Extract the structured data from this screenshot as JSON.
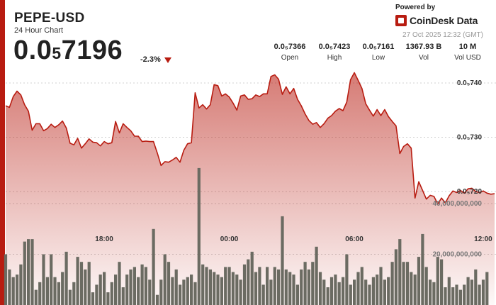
{
  "header": {
    "symbol": "PEPE-USD",
    "subtitle": "24 Hour Chart",
    "price_main": "0.0",
    "price_sub": "5",
    "price_tail": "7196",
    "change": "-2.3%"
  },
  "brand": {
    "powered_by": "Powered by",
    "name": "CoinDesk Data",
    "timestamp": "27 Oct 2025 12:32 (GMT)"
  },
  "stats": [
    {
      "value": "0.0₅7366",
      "label": "Open"
    },
    {
      "value": "0.0₅7423",
      "label": "High"
    },
    {
      "value": "0.0₅7161",
      "label": "Low"
    },
    {
      "value": "1367.93 B",
      "label": "Vol"
    },
    {
      "value": "10 M",
      "label": "Vol USD"
    }
  ],
  "colors": {
    "accent": "#b81c11",
    "price_line": "#b81c11",
    "volume_bar": "#6b6b62",
    "gridline": "#d0d0d0"
  },
  "chart_data": {
    "type": "line",
    "price_axis": {
      "ticks": [
        7.4e-06,
        7.3e-06,
        7.2e-06
      ],
      "tick_labels": [
        "0.0₅740",
        "0.0₅730",
        "0.0₅720"
      ]
    },
    "volume_axis": {
      "ticks": [
        40000000000,
        20000000000
      ],
      "tick_labels": [
        "40,000,000,000",
        "20,000,000,000"
      ]
    },
    "x_tick_labels": [
      "18:00",
      "00:00",
      "06:00",
      "12:00"
    ],
    "x_tick_index": [
      26,
      59,
      92,
      126
    ],
    "price": [
      7.358,
      7.355,
      7.375,
      7.385,
      7.378,
      7.36,
      7.348,
      7.313,
      7.325,
      7.325,
      7.312,
      7.316,
      7.324,
      7.318,
      7.323,
      7.33,
      7.317,
      7.289,
      7.286,
      7.298,
      7.28,
      7.288,
      7.297,
      7.291,
      7.29,
      7.284,
      7.292,
      7.288,
      7.29,
      7.329,
      7.308,
      7.325,
      7.318,
      7.312,
      7.302,
      7.302,
      7.292,
      7.293,
      7.292,
      7.292,
      7.271,
      7.248,
      7.255,
      7.254,
      7.258,
      7.263,
      7.254,
      7.276,
      7.288,
      7.29,
      7.382,
      7.354,
      7.36,
      7.352,
      7.36,
      7.397,
      7.395,
      7.376,
      7.38,
      7.374,
      7.363,
      7.35,
      7.376,
      7.378,
      7.37,
      7.371,
      7.378,
      7.375,
      7.38,
      7.38,
      7.412,
      7.415,
      7.407,
      7.379,
      7.393,
      7.38,
      7.39,
      7.37,
      7.358,
      7.343,
      7.331,
      7.324,
      7.327,
      7.318,
      7.325,
      7.335,
      7.34,
      7.348,
      7.353,
      7.349,
      7.365,
      7.406,
      7.419,
      7.405,
      7.39,
      7.362,
      7.35,
      7.339,
      7.351,
      7.34,
      7.351,
      7.338,
      7.329,
      7.321,
      7.27,
      7.283,
      7.288,
      7.28,
      7.188,
      7.218,
      7.202,
      7.186,
      7.193,
      7.191,
      7.177,
      7.188,
      7.179,
      7.192,
      7.201,
      7.198,
      7.202,
      7.197,
      7.205,
      7.206,
      7.2,
      7.198,
      7.201,
      7.197,
      7.195,
      7.196
    ],
    "price_scale": 1e-06,
    "volume": [
      20,
      14,
      11,
      12,
      16,
      25,
      26,
      26,
      6,
      9,
      20,
      11,
      20,
      11,
      9,
      13,
      21,
      6,
      9,
      19,
      17,
      14,
      17,
      5,
      8,
      12,
      13,
      5,
      9,
      12,
      17,
      7,
      12,
      14,
      15,
      11,
      16,
      15,
      10,
      30,
      4,
      10,
      20,
      17,
      11,
      14,
      8,
      10,
      11,
      12,
      9,
      54,
      16,
      15,
      14,
      13,
      12,
      11,
      15,
      15,
      13,
      12,
      10,
      16,
      18,
      21,
      13,
      15,
      8,
      15,
      10,
      15,
      14,
      35,
      14,
      13,
      12,
      8,
      14,
      17,
      14,
      17,
      23,
      13,
      10,
      7,
      11,
      12,
      9,
      11,
      20,
      8,
      10,
      13,
      15,
      10,
      8,
      11,
      12,
      15,
      10,
      11,
      17,
      22,
      26,
      17,
      17,
      13,
      12,
      19,
      28,
      15,
      10,
      9,
      19,
      18,
      7,
      11,
      7,
      8,
      6,
      8,
      11,
      10,
      14,
      8,
      10,
      13
    ],
    "volume_scale": 1000000000
  }
}
